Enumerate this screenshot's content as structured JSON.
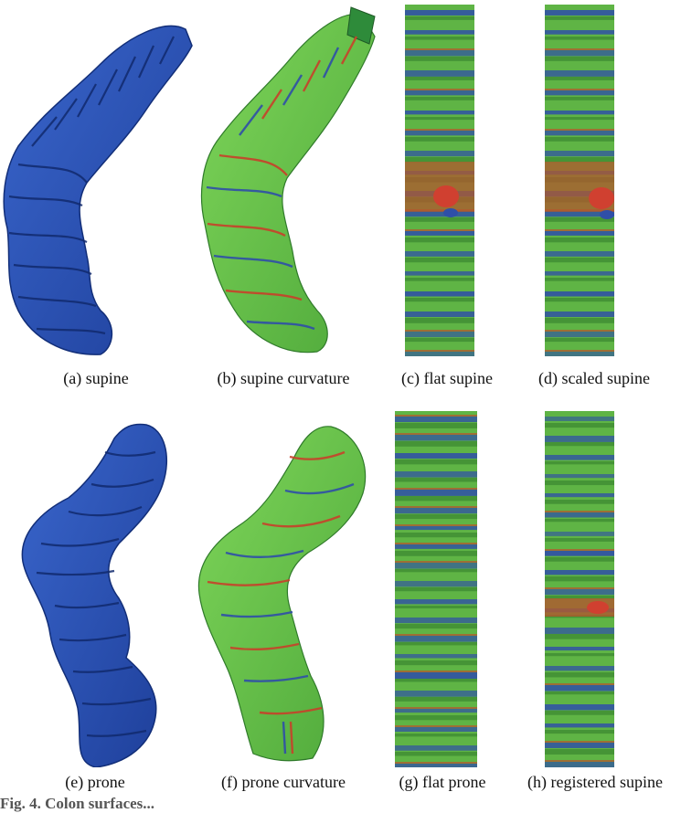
{
  "figure": {
    "colors": {
      "surface_blue": "#2b53b8",
      "surface_blue_dark": "#122e78",
      "curv_green": "#68c84a",
      "curv_green_dark": "#2f7a2a",
      "curv_red": "#c8412a",
      "curv_blue": "#2f4fa8",
      "background": "#ffffff"
    },
    "panels": [
      {
        "id": "a",
        "caption": "(a) supine",
        "kind": "surface-blue"
      },
      {
        "id": "b",
        "caption": "(b) supine curvature",
        "kind": "surface-curvature"
      },
      {
        "id": "c",
        "caption": "(c) flat supine",
        "kind": "flattened-map"
      },
      {
        "id": "d",
        "caption": "(d) scaled supine",
        "kind": "flattened-map"
      },
      {
        "id": "e",
        "caption": "(e) prone",
        "kind": "surface-blue"
      },
      {
        "id": "f",
        "caption": "(f) prone curvature",
        "kind": "surface-curvature"
      },
      {
        "id": "g",
        "caption": "(g) flat prone",
        "kind": "flattened-map"
      },
      {
        "id": "h",
        "caption": "(h) registered supine",
        "kind": "flattened-map"
      }
    ],
    "footer_text": "Fig. 4. Colon surfaces..."
  }
}
